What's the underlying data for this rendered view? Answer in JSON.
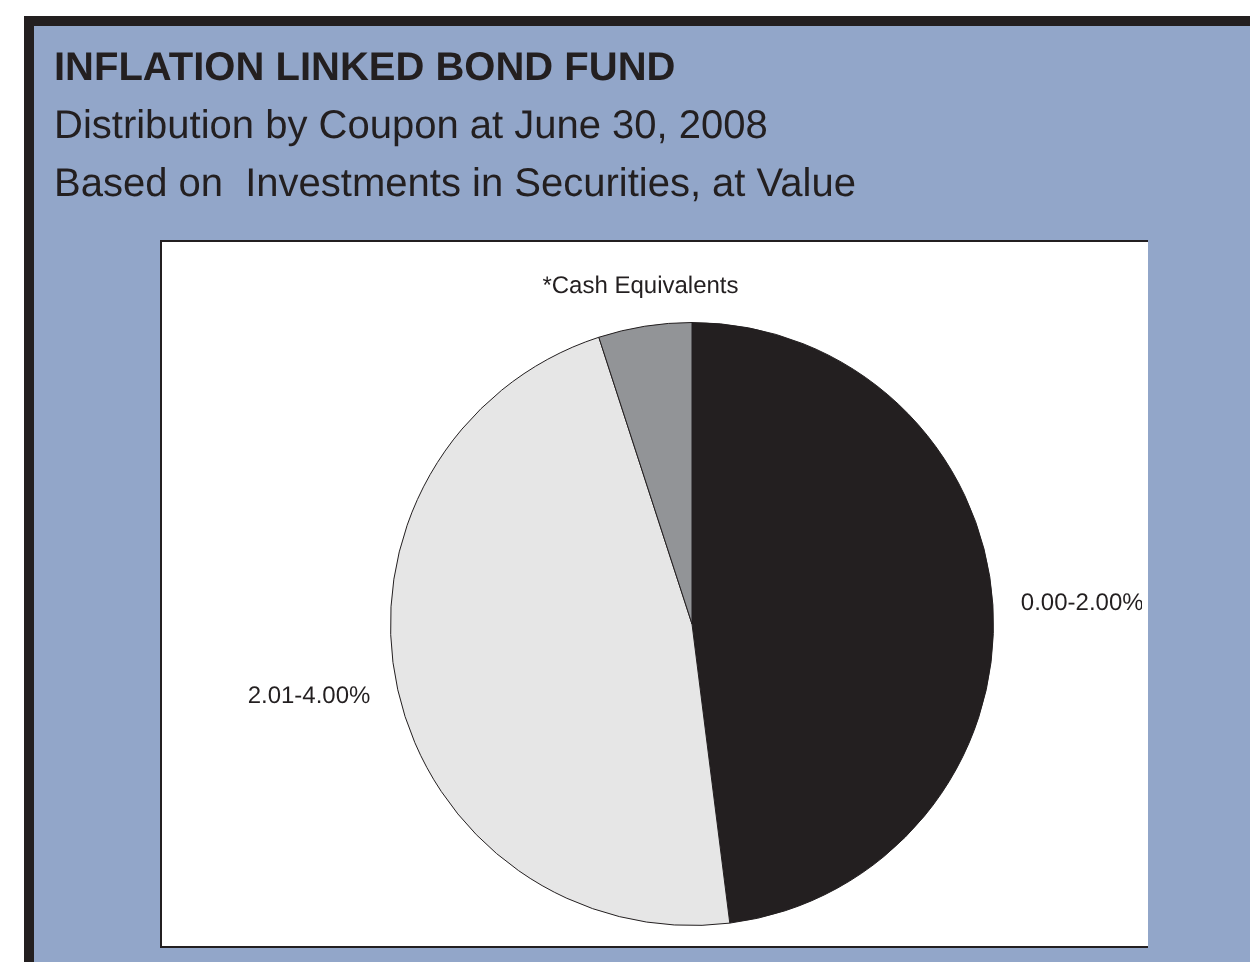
{
  "chart_data": {
    "type": "pie",
    "title": "INFLATION LINKED BOND FUND",
    "subtitle": "Distribution by Coupon at June 30, 2008\nBased on  Investments in Securities, at Value",
    "categories": [
      "0.00-2.00%",
      "2.01-4.00%",
      "*Cash Equivalents"
    ],
    "values": [
      48,
      47,
      5
    ],
    "colors": [
      "#231f20",
      "#e6e6e6",
      "#929497"
    ],
    "legend": false
  }
}
